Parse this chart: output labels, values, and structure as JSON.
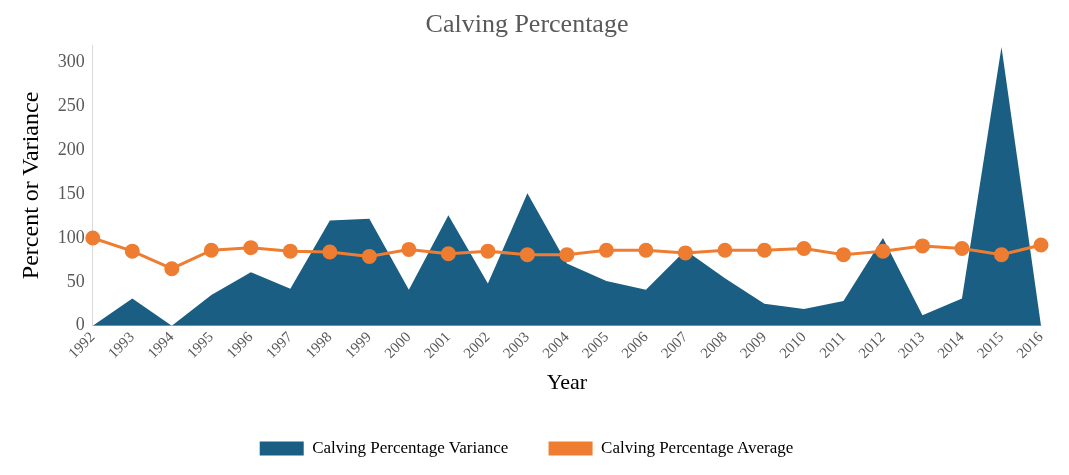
{
  "chart_data": {
    "type": "area",
    "title": "Calving Percentage",
    "xlabel": "Year",
    "ylabel": "Percent or Variance",
    "categories": [
      "1992",
      "1993",
      "1994",
      "1995",
      "1996",
      "1997",
      "1998",
      "1999",
      "2000",
      "2001",
      "2002",
      "2003",
      "2004",
      "2005",
      "2006",
      "2007",
      "2008",
      "2009",
      "2010",
      "2011",
      "2012",
      "2013",
      "2014",
      "2015",
      "2016"
    ],
    "series": [
      {
        "name": "Calving Percentage Variance",
        "color": "#1b5e84",
        "values": [
          0,
          31,
          0,
          35,
          61,
          42,
          120,
          122,
          41,
          126,
          48,
          151,
          71,
          51,
          41,
          86,
          54,
          25,
          19,
          28,
          100,
          12,
          31,
          318,
          0
        ]
      },
      {
        "name": "Calving Percentage Average",
        "type": "line",
        "color": "#ee7d31",
        "marker": "circle",
        "values": [
          100,
          85,
          65,
          86,
          89,
          85,
          84,
          79,
          87,
          82,
          85,
          81,
          81,
          86,
          86,
          83,
          86,
          86,
          88,
          81,
          85,
          91,
          88,
          81,
          92
        ]
      }
    ],
    "ylim": [
      0,
      320
    ],
    "yticks": [
      0,
      50,
      100,
      150,
      200,
      250,
      300
    ],
    "grid": false,
    "legend": "bottom"
  }
}
